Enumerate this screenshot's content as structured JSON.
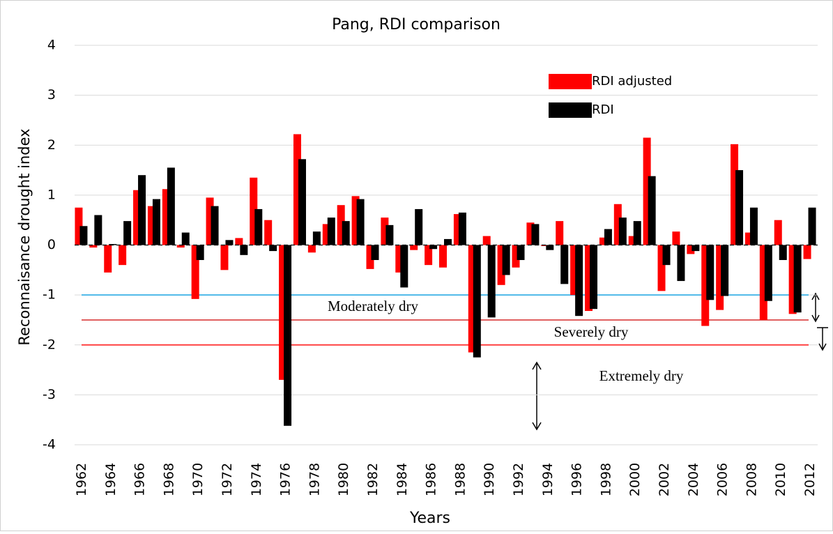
{
  "chart_data": {
    "type": "bar",
    "title": "Pang, RDI comparison",
    "x_label": "Years",
    "y_label": "Reconnaisance drought index",
    "categories": [
      "1962",
      null,
      "1964",
      null,
      "1966",
      null,
      "1968",
      null,
      "1970",
      null,
      "1972",
      null,
      "1974",
      null,
      "1976",
      null,
      "1978",
      null,
      "1980",
      null,
      "1982",
      null,
      "1984",
      null,
      "1986",
      null,
      "1988",
      null,
      "1990",
      null,
      "1992",
      null,
      "1994",
      null,
      "1996",
      null,
      "1998",
      null,
      "2000",
      null,
      "2002",
      null,
      "2004",
      null,
      "2006",
      null,
      "2008",
      null,
      "2010",
      null,
      "2012"
    ],
    "series": [
      {
        "name": "RDI adjusted",
        "color": "#ff0000",
        "values": [
          0.75,
          -0.05,
          -0.55,
          -0.4,
          1.1,
          0.78,
          1.12,
          -0.05,
          -1.08,
          0.95,
          -0.5,
          0.14,
          1.35,
          0.5,
          -2.7,
          2.22,
          -0.15,
          0.42,
          0.8,
          0.98,
          -0.48,
          0.55,
          -0.55,
          -0.1,
          -0.4,
          -0.45,
          0.62,
          -2.15,
          0.18,
          -0.8,
          -0.45,
          0.45,
          -0.02,
          0.48,
          -1.0,
          -1.32,
          0.15,
          0.82,
          0.18,
          2.15,
          -0.92,
          0.27,
          -0.18,
          -1.62,
          -1.3,
          2.02,
          0.25,
          -1.5,
          0.5,
          -1.38,
          -0.28
        ]
      },
      {
        "name": "RDI",
        "color": "#000000",
        "values": [
          0.38,
          0.6,
          0.02,
          0.48,
          1.4,
          0.92,
          1.55,
          0.25,
          -0.3,
          0.78,
          0.1,
          -0.2,
          0.72,
          -0.12,
          -3.62,
          1.72,
          0.27,
          0.55,
          0.48,
          0.92,
          -0.3,
          0.4,
          -0.85,
          0.72,
          -0.08,
          0.12,
          0.65,
          -2.25,
          -1.45,
          -0.6,
          -0.3,
          0.42,
          -0.1,
          -0.78,
          -1.42,
          -1.28,
          0.32,
          0.55,
          0.48,
          1.38,
          -0.4,
          -0.72,
          -0.12,
          -1.1,
          -1.02,
          1.5,
          0.75,
          -1.12,
          -0.3,
          -1.35,
          0.75
        ]
      }
    ],
    "ylim": [
      -4,
      4
    ],
    "yticks": [
      -4,
      -3,
      -2,
      -1,
      0,
      1,
      2,
      3,
      4
    ],
    "grid": true,
    "reference_lines": [
      {
        "value": -1,
        "label": "Moderately dry",
        "color": "#4db8e8"
      },
      {
        "value": -1.5,
        "label": "Severely dry",
        "color": "#e06060"
      },
      {
        "value": -2,
        "label": "Extremely dry",
        "color": "#ff4040"
      }
    ]
  }
}
